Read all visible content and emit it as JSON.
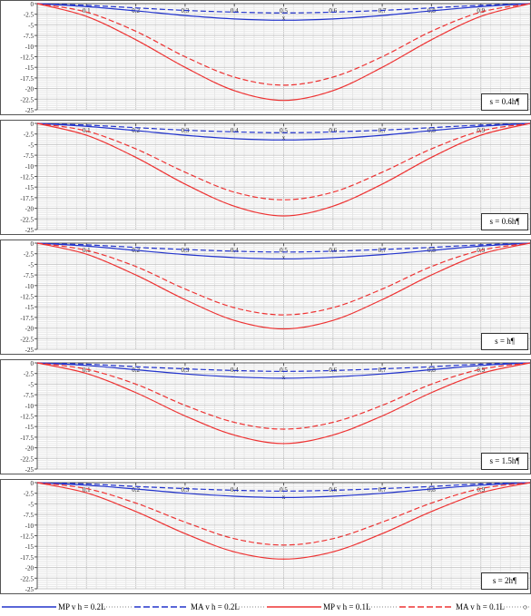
{
  "chart_data": [
    {
      "type": "line",
      "annotation": "s = 0.4h¶",
      "x": [
        0,
        0.1,
        0.2,
        0.3,
        0.4,
        0.5,
        0.6,
        0.7,
        0.8,
        0.9,
        1.0
      ],
      "x_tick_labels": [
        "0.1",
        "0.2",
        "0.3",
        "0.4",
        "0.5",
        "0.6",
        "0.7",
        "0.8",
        "0.9"
      ],
      "y_tick_labels": [
        "0",
        "-2.5",
        "-5",
        "-7.5",
        "-10",
        "-12.5",
        "-15",
        "-17.5",
        "-20",
        "-22.5",
        "-25"
      ],
      "xlabel": "x",
      "ylim": [
        -25,
        0
      ],
      "xlim": [
        0,
        1.0
      ],
      "series": [
        {
          "name": "MP v h = 0.2L",
          "color": "#2233cc",
          "dash": false,
          "values": [
            0,
            -0.7,
            -1.7,
            -2.8,
            -3.6,
            -3.9,
            -3.6,
            -2.8,
            -1.7,
            -0.7,
            0
          ]
        },
        {
          "name": "MA v h = 0.2L",
          "color": "#2233cc",
          "dash": true,
          "values": [
            0,
            -0.4,
            -1.0,
            -1.6,
            -2.0,
            -2.2,
            -2.0,
            -1.6,
            -1.0,
            -0.4,
            0
          ]
        },
        {
          "name": "MP v h = 0.1L",
          "color": "#ee3333",
          "dash": false,
          "values": [
            0,
            -3.0,
            -8.5,
            -15.0,
            -20.5,
            -22.8,
            -20.5,
            -15.0,
            -8.5,
            -3.0,
            0
          ]
        },
        {
          "name": "MA v h = 0.1L",
          "color": "#ee3333",
          "dash": true,
          "values": [
            0,
            -2.0,
            -6.5,
            -12.5,
            -17.3,
            -19.2,
            -17.3,
            -12.5,
            -6.5,
            -2.0,
            0
          ]
        }
      ]
    },
    {
      "type": "line",
      "annotation": "s = 0.6h¶",
      "x": [
        0,
        0.1,
        0.2,
        0.3,
        0.4,
        0.5,
        0.6,
        0.7,
        0.8,
        0.9,
        1.0
      ],
      "x_tick_labels": [
        "0.1",
        "0.2",
        "0.3",
        "0.4",
        "0.5",
        "0.6",
        "0.7",
        "0.8",
        "0.9"
      ],
      "y_tick_labels": [
        "0",
        "-2.5",
        "-5",
        "-7.5",
        "-10",
        "-12.5",
        "-15",
        "-17.5",
        "-20",
        "-22.5",
        "-25"
      ],
      "xlabel": "x",
      "ylim": [
        -25,
        0
      ],
      "xlim": [
        0,
        1.0
      ],
      "series": [
        {
          "name": "MP v h = 0.2L",
          "color": "#2233cc",
          "dash": false,
          "values": [
            0,
            -0.7,
            -1.7,
            -2.8,
            -3.6,
            -3.9,
            -3.6,
            -2.8,
            -1.7,
            -0.7,
            0
          ]
        },
        {
          "name": "MA v h = 0.2L",
          "color": "#2233cc",
          "dash": true,
          "values": [
            0,
            -0.4,
            -1.0,
            -1.6,
            -2.0,
            -2.2,
            -2.0,
            -1.6,
            -1.0,
            -0.4,
            0
          ]
        },
        {
          "name": "MP v h = 0.1L",
          "color": "#ee3333",
          "dash": false,
          "values": [
            0,
            -2.8,
            -8.0,
            -14.3,
            -19.5,
            -21.8,
            -19.5,
            -14.3,
            -8.0,
            -2.8,
            0
          ]
        },
        {
          "name": "MA v h = 0.1L",
          "color": "#ee3333",
          "dash": true,
          "values": [
            0,
            -1.8,
            -6.0,
            -11.5,
            -16.2,
            -18.0,
            -16.2,
            -11.5,
            -6.0,
            -1.8,
            0
          ]
        }
      ]
    },
    {
      "type": "line",
      "annotation": "s = h¶",
      "x": [
        0,
        0.1,
        0.2,
        0.3,
        0.4,
        0.5,
        0.6,
        0.7,
        0.8,
        0.9,
        1.0
      ],
      "x_tick_labels": [
        "0.1",
        "0.2",
        "0.3",
        "0.4",
        "0.5",
        "0.6",
        "0.7",
        "0.8",
        "0.9"
      ],
      "y_tick_labels": [
        "0",
        "-2.5",
        "-5",
        "-7.5",
        "-10",
        "-12.5",
        "-15",
        "-17.5",
        "-20",
        "-22.5",
        "-25"
      ],
      "xlabel": "x",
      "ylim": [
        -25,
        0
      ],
      "xlim": [
        0,
        1.0
      ],
      "series": [
        {
          "name": "MP v h = 0.2L",
          "color": "#2233cc",
          "dash": false,
          "values": [
            0,
            -0.7,
            -1.7,
            -2.7,
            -3.4,
            -3.7,
            -3.4,
            -2.7,
            -1.7,
            -0.7,
            0
          ]
        },
        {
          "name": "MA v h = 0.2L",
          "color": "#2233cc",
          "dash": true,
          "values": [
            0,
            -0.4,
            -1.0,
            -1.5,
            -1.9,
            -2.1,
            -1.9,
            -1.5,
            -1.0,
            -0.4,
            0
          ]
        },
        {
          "name": "MP v h = 0.1L",
          "color": "#ee3333",
          "dash": false,
          "values": [
            0,
            -2.6,
            -7.5,
            -13.3,
            -18.2,
            -20.2,
            -18.2,
            -13.3,
            -7.5,
            -2.6,
            0
          ]
        },
        {
          "name": "MA v h = 0.1L",
          "color": "#ee3333",
          "dash": true,
          "values": [
            0,
            -1.7,
            -5.5,
            -10.8,
            -15.2,
            -16.9,
            -15.2,
            -10.8,
            -5.5,
            -1.7,
            0
          ]
        }
      ]
    },
    {
      "type": "line",
      "annotation": "s = 1.5h¶",
      "x": [
        0,
        0.1,
        0.2,
        0.3,
        0.4,
        0.5,
        0.6,
        0.7,
        0.8,
        0.9,
        1.0
      ],
      "x_tick_labels": [
        "0.1",
        "0.2",
        "0.3",
        "0.4",
        "0.5",
        "0.6",
        "0.7",
        "0.8",
        "0.9"
      ],
      "y_tick_labels": [
        "0",
        "-2.5",
        "-5",
        "-7.5",
        "-10",
        "-12.5",
        "-15",
        "-17.5",
        "-20",
        "-22.5",
        "-25"
      ],
      "xlabel": "x",
      "ylim": [
        -25,
        0
      ],
      "xlim": [
        0,
        1.0
      ],
      "series": [
        {
          "name": "MP v h = 0.2L",
          "color": "#2233cc",
          "dash": false,
          "values": [
            0,
            -0.6,
            -1.6,
            -2.6,
            -3.3,
            -3.6,
            -3.3,
            -2.6,
            -1.6,
            -0.6,
            0
          ]
        },
        {
          "name": "MA v h = 0.2L",
          "color": "#2233cc",
          "dash": true,
          "values": [
            0,
            -0.3,
            -0.9,
            -1.4,
            -1.8,
            -2.0,
            -1.8,
            -1.4,
            -0.9,
            -0.3,
            0
          ]
        },
        {
          "name": "MP v h = 0.1L",
          "color": "#ee3333",
          "dash": false,
          "values": [
            0,
            -2.5,
            -7.0,
            -12.5,
            -17.0,
            -19.0,
            -17.0,
            -12.5,
            -7.0,
            -2.5,
            0
          ]
        },
        {
          "name": "MA v h = 0.1L",
          "color": "#ee3333",
          "dash": true,
          "values": [
            0,
            -1.5,
            -5.0,
            -10.0,
            -14.0,
            -15.6,
            -14.0,
            -10.0,
            -5.0,
            -1.5,
            0
          ]
        }
      ]
    },
    {
      "type": "line",
      "annotation": "s = 2h¶",
      "x": [
        0,
        0.1,
        0.2,
        0.3,
        0.4,
        0.5,
        0.6,
        0.7,
        0.8,
        0.9,
        1.0
      ],
      "x_tick_labels": [
        "0.1",
        "0.2",
        "0.3",
        "0.4",
        "0.5",
        "0.6",
        "0.7",
        "0.8",
        "0.9"
      ],
      "y_tick_labels": [
        "0",
        "-2.5",
        "-5",
        "-7.5",
        "-10",
        "-12.5",
        "-15",
        "-17.5",
        "-20",
        "-22.5",
        "-25"
      ],
      "xlabel": "x",
      "ylim": [
        -25,
        0
      ],
      "xlim": [
        0,
        1.0
      ],
      "series": [
        {
          "name": "MP v h = 0.2L",
          "color": "#2233cc",
          "dash": false,
          "values": [
            0,
            -0.6,
            -1.5,
            -2.5,
            -3.2,
            -3.5,
            -3.2,
            -2.5,
            -1.5,
            -0.6,
            0
          ]
        },
        {
          "name": "MA v h = 0.2L",
          "color": "#2233cc",
          "dash": true,
          "values": [
            0,
            -0.3,
            -0.9,
            -1.4,
            -1.8,
            -2.0,
            -1.8,
            -1.4,
            -0.9,
            -0.3,
            0
          ]
        },
        {
          "name": "MP v h = 0.1L",
          "color": "#ee3333",
          "dash": false,
          "values": [
            0,
            -2.4,
            -6.8,
            -12.0,
            -16.3,
            -18.0,
            -16.3,
            -12.0,
            -6.8,
            -2.4,
            0
          ]
        },
        {
          "name": "MA v h = 0.1L",
          "color": "#ee3333",
          "dash": true,
          "values": [
            0,
            -1.4,
            -4.8,
            -9.3,
            -13.2,
            -14.7,
            -13.2,
            -9.3,
            -4.8,
            -1.4,
            0
          ]
        }
      ]
    }
  ],
  "legend": {
    "end_mark": "○",
    "items": [
      {
        "label": "MP v h = 0.2L",
        "color": "#2233cc",
        "dash": false
      },
      {
        "label": "MA v h = 0.2L",
        "color": "#2233cc",
        "dash": true
      },
      {
        "label": "MP v h = 0.1L",
        "color": "#ee3333",
        "dash": false
      },
      {
        "label": "MA v h = 0.1L",
        "color": "#ee3333",
        "dash": true
      }
    ]
  }
}
